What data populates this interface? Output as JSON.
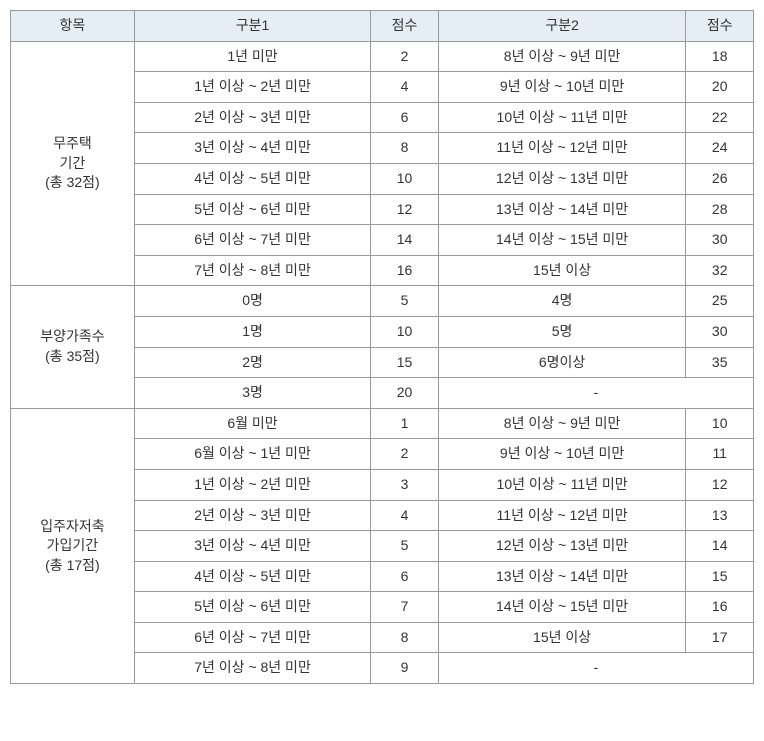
{
  "headers": {
    "item": "항목",
    "div1": "구분1",
    "score1": "점수",
    "div2": "구분2",
    "score2": "점수"
  },
  "sections": [
    {
      "label": "무주택\n기간\n(총 32점)",
      "rows": [
        {
          "d1": "1년 미만",
          "s1": "2",
          "d2": "8년 이상 ~ 9년 미만",
          "s2": "18"
        },
        {
          "d1": "1년 이상 ~ 2년 미만",
          "s1": "4",
          "d2": "9년 이상 ~ 10년 미만",
          "s2": "20"
        },
        {
          "d1": "2년 이상 ~ 3년 미만",
          "s1": "6",
          "d2": "10년 이상 ~ 11년 미만",
          "s2": "22"
        },
        {
          "d1": "3년 이상 ~ 4년 미만",
          "s1": "8",
          "d2": "11년 이상 ~ 12년 미만",
          "s2": "24"
        },
        {
          "d1": "4년 이상 ~ 5년 미만",
          "s1": "10",
          "d2": "12년 이상 ~ 13년 미만",
          "s2": "26"
        },
        {
          "d1": "5년 이상 ~ 6년 미만",
          "s1": "12",
          "d2": "13년 이상 ~ 14년 미만",
          "s2": "28"
        },
        {
          "d1": "6년 이상 ~ 7년 미만",
          "s1": "14",
          "d2": "14년 이상 ~ 15년 미만",
          "s2": "30"
        },
        {
          "d1": "7년 이상 ~ 8년 미만",
          "s1": "16",
          "d2": "15년 이상",
          "s2": "32"
        }
      ]
    },
    {
      "label": "부양가족수\n(총 35점)",
      "rows": [
        {
          "d1": "0명",
          "s1": "5",
          "d2": "4명",
          "s2": "25"
        },
        {
          "d1": "1명",
          "s1": "10",
          "d2": "5명",
          "s2": "30"
        },
        {
          "d1": "2명",
          "s1": "15",
          "d2": "6명이상",
          "s2": "35"
        },
        {
          "d1": "3명",
          "s1": "20",
          "d2": "-",
          "s2": "",
          "mergeLast": true
        }
      ]
    },
    {
      "label": "입주자저축\n가입기간\n(총 17점)",
      "rows": [
        {
          "d1": "6월 미만",
          "s1": "1",
          "d2": "8년 이상 ~ 9년 미만",
          "s2": "10"
        },
        {
          "d1": "6월 이상 ~ 1년 미만",
          "s1": "2",
          "d2": "9년 이상 ~ 10년 미만",
          "s2": "11"
        },
        {
          "d1": "1년 이상 ~ 2년 미만",
          "s1": "3",
          "d2": "10년 이상 ~ 11년 미만",
          "s2": "12"
        },
        {
          "d1": "2년 이상 ~ 3년 미만",
          "s1": "4",
          "d2": "11년 이상 ~ 12년 미만",
          "s2": "13"
        },
        {
          "d1": "3년 이상 ~ 4년 미만",
          "s1": "5",
          "d2": "12년 이상 ~ 13년 미만",
          "s2": "14"
        },
        {
          "d1": "4년 이상 ~ 5년 미만",
          "s1": "6",
          "d2": "13년 이상 ~ 14년 미만",
          "s2": "15"
        },
        {
          "d1": "5년 이상 ~ 6년 미만",
          "s1": "7",
          "d2": "14년 이상 ~ 15년 미만",
          "s2": "16"
        },
        {
          "d1": "6년 이상 ~ 7년 미만",
          "s1": "8",
          "d2": "15년 이상",
          "s2": "17"
        },
        {
          "d1": "7년 이상 ~ 8년 미만",
          "s1": "9",
          "d2": "-",
          "s2": "",
          "mergeLast": true
        }
      ]
    }
  ]
}
